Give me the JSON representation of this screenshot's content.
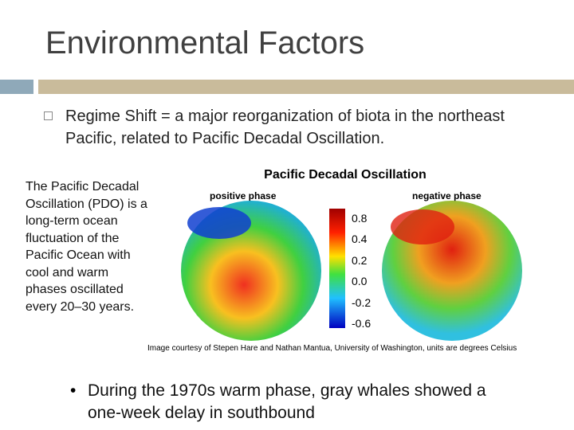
{
  "header": {
    "title": "Environmental Factors"
  },
  "bullets": [
    "Regime Shift = a major reorganization of biota in the northeast Pacific, related to Pacific Decadal Oscillation."
  ],
  "side_text": "The Pacific Decadal Oscillation (PDO) is a long-term ocean fluctuation of the Pacific Ocean with cool and warm phases oscillated every 20–30 years.",
  "figure": {
    "title": "Pacific Decadal Oscillation",
    "left_label": "positive phase",
    "right_label": "negative phase",
    "colorbar_labels": [
      "0.8",
      "0.4",
      "0.2",
      "0.0",
      "-0.2",
      "-0.6"
    ],
    "caption": "Image courtesy of Stepen Hare and Nathan Mantua, University of Washington, units are degrees Celsius"
  },
  "sub_bullet": "During the 1970s warm phase, gray whales showed a one-week delay in southbound"
}
